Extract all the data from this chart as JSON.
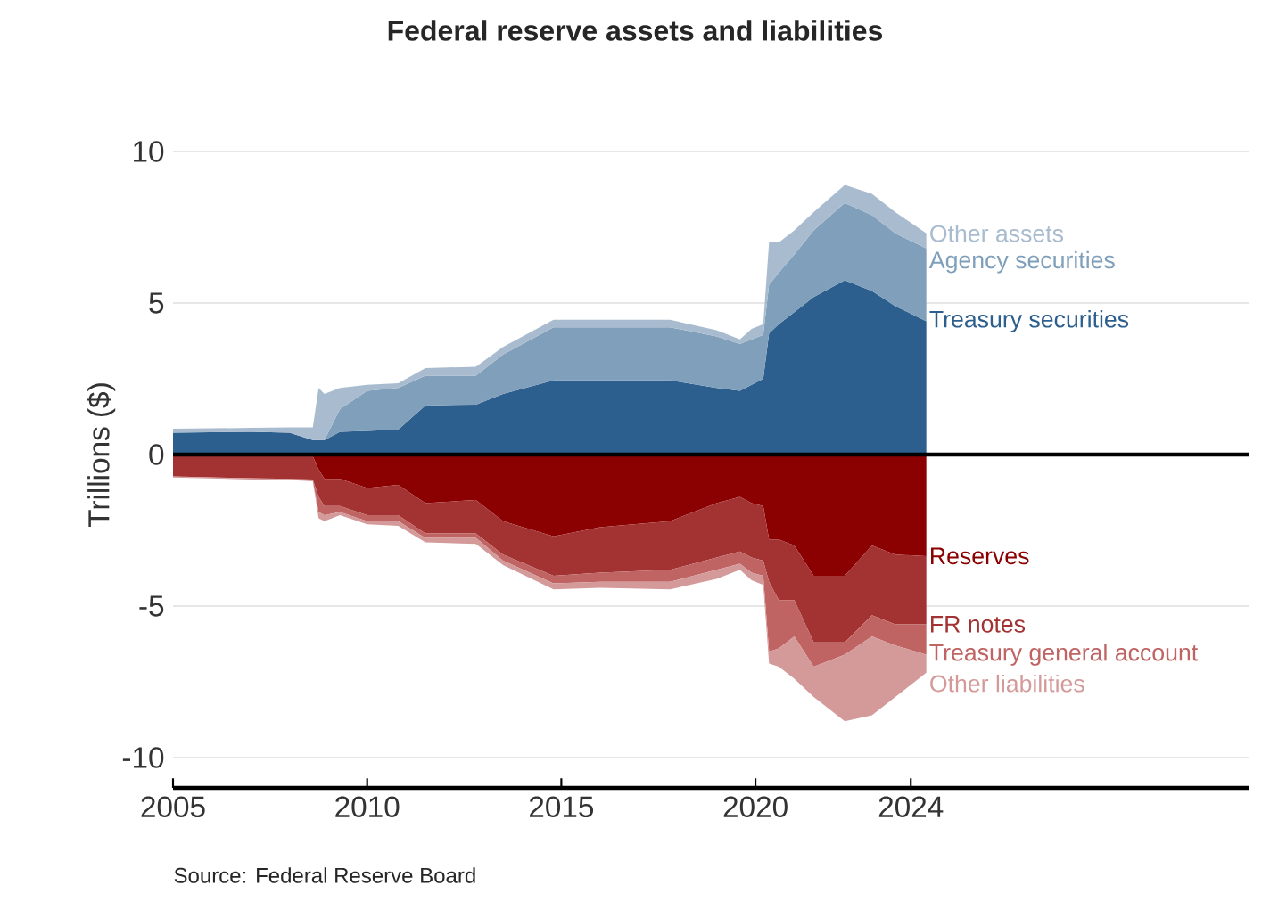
{
  "chart_data": [
    {
      "type": "area",
      "stacked": true,
      "title": "Federal reserve assets and liabilities",
      "ylabel": "Trillions ($)",
      "x": [
        2005,
        2007,
        2008.0,
        2008.6,
        2008.75,
        2008.9,
        2009.3,
        2010.0,
        2010.8,
        2011.5,
        2012.8,
        2013.5,
        2014.8,
        2016,
        2017.8,
        2019.0,
        2019.6,
        2019.9,
        2020.2,
        2020.35,
        2020.6,
        2021.0,
        2021.5,
        2022.3,
        2023.0,
        2023.6,
        2024.4
      ],
      "series": [
        {
          "name": "Treasury securities",
          "color": "#2d5f8e",
          "values": [
            0.72,
            0.75,
            0.72,
            0.48,
            0.48,
            0.48,
            0.75,
            0.78,
            0.82,
            1.62,
            1.65,
            2.0,
            2.45,
            2.45,
            2.45,
            2.2,
            2.1,
            2.3,
            2.5,
            4.0,
            4.3,
            4.7,
            5.2,
            5.75,
            5.4,
            4.9,
            4.4
          ]
        },
        {
          "name": "Agency securities",
          "color": "#7f9fba",
          "values": [
            0,
            0,
            0,
            0,
            0,
            0,
            0.75,
            1.32,
            1.38,
            0.98,
            0.95,
            1.3,
            1.75,
            1.75,
            1.75,
            1.7,
            1.55,
            1.5,
            1.45,
            1.6,
            1.7,
            1.9,
            2.2,
            2.55,
            2.5,
            2.4,
            2.4
          ]
        },
        {
          "name": "Other assets",
          "color": "#a9bccf",
          "values": [
            0.13,
            0.13,
            0.18,
            0.42,
            1.72,
            1.52,
            0.7,
            0.2,
            0.15,
            0.25,
            0.3,
            0.25,
            0.25,
            0.25,
            0.25,
            0.2,
            0.15,
            0.35,
            0.35,
            1.4,
            1.0,
            0.8,
            0.6,
            0.6,
            0.7,
            0.7,
            0.5
          ]
        }
      ],
      "xlim": [
        2005,
        2032.7
      ],
      "ylim": [
        0,
        10
      ],
      "yticks": [
        0,
        5,
        10
      ],
      "grid": "y",
      "tick_labels": "y"
    },
    {
      "type": "area",
      "stacked": true,
      "annotations": [
        "Source: Federal Reserve Board"
      ],
      "x": [
        2005,
        2007,
        2008.0,
        2008.6,
        2008.75,
        2008.9,
        2009.3,
        2010.0,
        2010.8,
        2011.5,
        2012.8,
        2013.5,
        2014.8,
        2016,
        2017.8,
        2019.0,
        2019.6,
        2019.9,
        2020.2,
        2020.35,
        2020.6,
        2021.0,
        2021.5,
        2022.3,
        2023.0,
        2023.6,
        2024.4
      ],
      "series": [
        {
          "name": "Reserves",
          "color": "#8b0000",
          "values": [
            -0.02,
            -0.02,
            -0.02,
            -0.05,
            -0.5,
            -0.8,
            -0.8,
            -1.1,
            -1.0,
            -1.6,
            -1.5,
            -2.2,
            -2.7,
            -2.4,
            -2.2,
            -1.6,
            -1.4,
            -1.6,
            -1.7,
            -2.8,
            -2.8,
            -3.0,
            -4.0,
            -4.0,
            -3.0,
            -3.3,
            -3.35
          ]
        },
        {
          "name": "FR notes",
          "color": "#a33232",
          "values": [
            -0.7,
            -0.76,
            -0.78,
            -0.77,
            -0.9,
            -0.9,
            -0.9,
            -0.9,
            -1.0,
            -1.0,
            -1.1,
            -1.1,
            -1.3,
            -1.5,
            -1.6,
            -1.8,
            -1.8,
            -1.8,
            -1.8,
            -1.4,
            -2.0,
            -1.8,
            -2.2,
            -2.2,
            -2.3,
            -2.3,
            -2.25
          ]
        },
        {
          "name": "Treasury general account",
          "color": "#bf6363",
          "values": [
            -0.01,
            -0.01,
            -0.01,
            -0.03,
            -0.5,
            -0.3,
            -0.2,
            -0.2,
            -0.2,
            -0.15,
            -0.15,
            -0.2,
            -0.25,
            -0.3,
            -0.4,
            -0.4,
            -0.4,
            -0.5,
            -0.5,
            -2.3,
            -1.6,
            -1.2,
            -0.8,
            -0.4,
            -0.7,
            -0.7,
            -1.0
          ]
        },
        {
          "name": "Other liabilities",
          "color": "#d49a9a",
          "values": [
            -0.03,
            -0.03,
            -0.03,
            -0.03,
            -0.2,
            -0.2,
            -0.1,
            -0.1,
            -0.15,
            -0.15,
            -0.2,
            -0.15,
            -0.2,
            -0.2,
            -0.25,
            -0.3,
            -0.2,
            -0.25,
            -0.3,
            -0.4,
            -0.6,
            -1.4,
            -1.0,
            -2.2,
            -2.6,
            -1.7,
            -0.6
          ]
        }
      ],
      "xlim": [
        2005,
        2032.7
      ],
      "ylim": [
        -11,
        0
      ],
      "xticks": [
        2005,
        2010,
        2015,
        2020,
        2024
      ],
      "yticks": [
        -10,
        -5
      ],
      "grid": "y",
      "ref_lines": [
        {
          "axis": "y",
          "value": 0,
          "color": "#000000"
        }
      ]
    }
  ]
}
